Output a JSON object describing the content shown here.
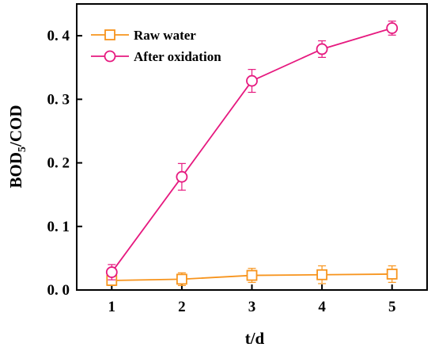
{
  "chart_data": {
    "type": "line",
    "xlabel": "t/d",
    "ylabel": {
      "main": "BOD",
      "sub": "5",
      "rest": "/COD"
    },
    "xlim": [
      0.5,
      5.5
    ],
    "ylim": [
      0,
      0.45
    ],
    "x_ticks": [
      1,
      2,
      3,
      4,
      5
    ],
    "y_ticks": [
      0.0,
      0.1,
      0.2,
      0.3,
      0.4
    ],
    "y_tick_labels": [
      "0. 0",
      "0. 1",
      "0. 2",
      "0. 3",
      "0. 4"
    ],
    "x": [
      1,
      2,
      3,
      4,
      5
    ],
    "series": [
      {
        "name": "Raw water",
        "marker": "square",
        "color": "#f7941d",
        "values": [
          0.015,
          0.017,
          0.023,
          0.024,
          0.025
        ],
        "error": [
          0.008,
          0.01,
          0.011,
          0.014,
          0.013
        ]
      },
      {
        "name": "After oxidation",
        "marker": "circle",
        "color": "#e6197f",
        "values": [
          0.028,
          0.178,
          0.329,
          0.379,
          0.412
        ],
        "error": [
          0.012,
          0.021,
          0.018,
          0.013,
          0.011
        ]
      }
    ],
    "legend_position": "top-left",
    "grid": false
  }
}
